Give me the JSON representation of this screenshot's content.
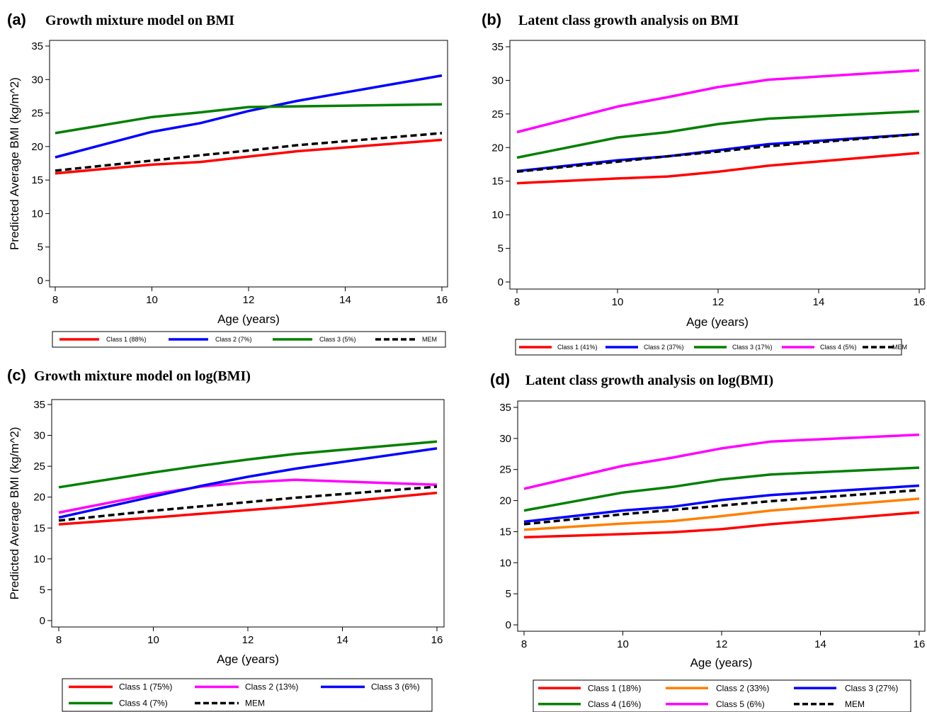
{
  "chart_data": [
    {
      "id": "a",
      "type": "line",
      "panel_label": "(a)",
      "title": "Growth mixture model on BMI",
      "xlabel": "Age (years)",
      "ylabel": "Predicted Average BMI (kg/m^2)",
      "xlim": [
        8,
        16
      ],
      "ylim": [
        0,
        35
      ],
      "x_ticks": [
        8,
        10,
        12,
        14,
        16
      ],
      "y_ticks": [
        0,
        5,
        10,
        15,
        20,
        25,
        30,
        35
      ],
      "x": [
        8,
        10,
        11,
        12,
        13,
        16
      ],
      "legend_position": "bottom",
      "series": [
        {
          "name": "Class 1 (88%)",
          "color": "#ff0000",
          "dash": false,
          "values": [
            16.0,
            17.3,
            17.7,
            18.5,
            19.3,
            21.0
          ]
        },
        {
          "name": "Class 2 (7%)",
          "color": "#0000ff",
          "dash": false,
          "values": [
            18.4,
            22.2,
            23.5,
            25.3,
            26.8,
            30.6
          ]
        },
        {
          "name": "Class 3 (5%)",
          "color": "#008000",
          "dash": false,
          "values": [
            22.0,
            24.4,
            25.1,
            25.9,
            26.0,
            26.3
          ]
        },
        {
          "name": "MEM",
          "color": "#000000",
          "dash": true,
          "values": [
            16.4,
            17.9,
            18.7,
            19.4,
            20.2,
            22.0
          ]
        }
      ]
    },
    {
      "id": "b",
      "type": "line",
      "panel_label": "(b)",
      "title": "Latent class growth analysis on BMI",
      "xlabel": "Age (years)",
      "ylabel": "",
      "xlim": [
        8,
        16
      ],
      "ylim": [
        0,
        35
      ],
      "x_ticks": [
        8,
        10,
        12,
        14,
        16
      ],
      "y_ticks": [
        0,
        5,
        10,
        15,
        20,
        25,
        30,
        35
      ],
      "x": [
        8,
        10,
        11,
        12,
        13,
        16
      ],
      "legend_position": "bottom",
      "series": [
        {
          "name": "Class 1 (41%)",
          "color": "#ff0000",
          "dash": false,
          "values": [
            14.7,
            15.4,
            15.7,
            16.4,
            17.3,
            19.2
          ]
        },
        {
          "name": "Class 2 (37%)",
          "color": "#0000ff",
          "dash": false,
          "values": [
            16.5,
            18.1,
            18.7,
            19.6,
            20.5,
            22.0
          ]
        },
        {
          "name": "Class 3 (17%)",
          "color": "#008000",
          "dash": false,
          "values": [
            18.5,
            21.5,
            22.3,
            23.5,
            24.3,
            25.4
          ]
        },
        {
          "name": "Class 4 (5%)",
          "color": "#ff00ff",
          "dash": false,
          "values": [
            22.3,
            26.1,
            27.5,
            29.0,
            30.1,
            31.5
          ]
        },
        {
          "name": "MEM",
          "color": "#000000",
          "dash": true,
          "values": [
            16.4,
            17.9,
            18.7,
            19.4,
            20.2,
            22.0
          ]
        }
      ]
    },
    {
      "id": "c",
      "type": "line",
      "panel_label": "(c)",
      "title": "Growth mixture model on log(BMI)",
      "xlabel": "Age (years)",
      "ylabel": "Predicted Average BMI (kg/m^2)",
      "xlim": [
        8,
        16
      ],
      "ylim": [
        0,
        35
      ],
      "x_ticks": [
        8,
        10,
        12,
        14,
        16
      ],
      "y_ticks": [
        0,
        5,
        10,
        15,
        20,
        25,
        30,
        35
      ],
      "x": [
        8,
        10,
        11,
        12,
        13,
        16
      ],
      "legend_position": "bottom",
      "series": [
        {
          "name": "Class 1 (75%)",
          "color": "#ff0000",
          "dash": false,
          "values": [
            15.6,
            16.7,
            17.3,
            17.9,
            18.5,
            20.7
          ]
        },
        {
          "name": "Class 2 (13%)",
          "color": "#ff00ff",
          "dash": false,
          "values": [
            17.5,
            20.5,
            21.7,
            22.4,
            22.8,
            22.0
          ]
        },
        {
          "name": "Class 3 (6%)",
          "color": "#0000ff",
          "dash": false,
          "values": [
            16.7,
            20.1,
            21.8,
            23.3,
            24.6,
            27.9
          ]
        },
        {
          "name": "Class 4 (7%)",
          "color": "#008000",
          "dash": false,
          "values": [
            21.6,
            24.0,
            25.1,
            26.1,
            27.0,
            29.0
          ]
        },
        {
          "name": "MEM",
          "color": "#000000",
          "dash": true,
          "values": [
            16.2,
            17.8,
            18.5,
            19.2,
            19.9,
            21.7
          ]
        }
      ]
    },
    {
      "id": "d",
      "type": "line",
      "panel_label": "(d)",
      "title": "Latent class growth analysis on log(BMI)",
      "xlabel": "Age (years)",
      "ylabel": "",
      "xlim": [
        8,
        16
      ],
      "ylim": [
        0,
        35
      ],
      "x_ticks": [
        8,
        10,
        12,
        14,
        16
      ],
      "y_ticks": [
        0,
        5,
        10,
        15,
        20,
        25,
        30,
        35
      ],
      "x": [
        8,
        10,
        11,
        12,
        13,
        16
      ],
      "legend_position": "bottom",
      "series": [
        {
          "name": "Class 1 (18%)",
          "color": "#ff0000",
          "dash": false,
          "values": [
            14.1,
            14.6,
            14.9,
            15.4,
            16.2,
            18.1
          ]
        },
        {
          "name": "Class 2 (33%)",
          "color": "#ff8000",
          "dash": false,
          "values": [
            15.3,
            16.3,
            16.7,
            17.5,
            18.4,
            20.3
          ]
        },
        {
          "name": "Class 3 (27%)",
          "color": "#0000ff",
          "dash": false,
          "values": [
            16.6,
            18.4,
            19.0,
            20.1,
            20.9,
            22.4
          ]
        },
        {
          "name": "Class 4 (16%)",
          "color": "#008000",
          "dash": false,
          "values": [
            18.4,
            21.3,
            22.2,
            23.4,
            24.2,
            25.3
          ]
        },
        {
          "name": "Class 5 (6%)",
          "color": "#ff00ff",
          "dash": false,
          "values": [
            21.9,
            25.6,
            26.9,
            28.4,
            29.5,
            30.6
          ]
        },
        {
          "name": "MEM",
          "color": "#000000",
          "dash": true,
          "values": [
            16.2,
            17.8,
            18.5,
            19.2,
            19.9,
            21.7
          ]
        }
      ]
    }
  ]
}
